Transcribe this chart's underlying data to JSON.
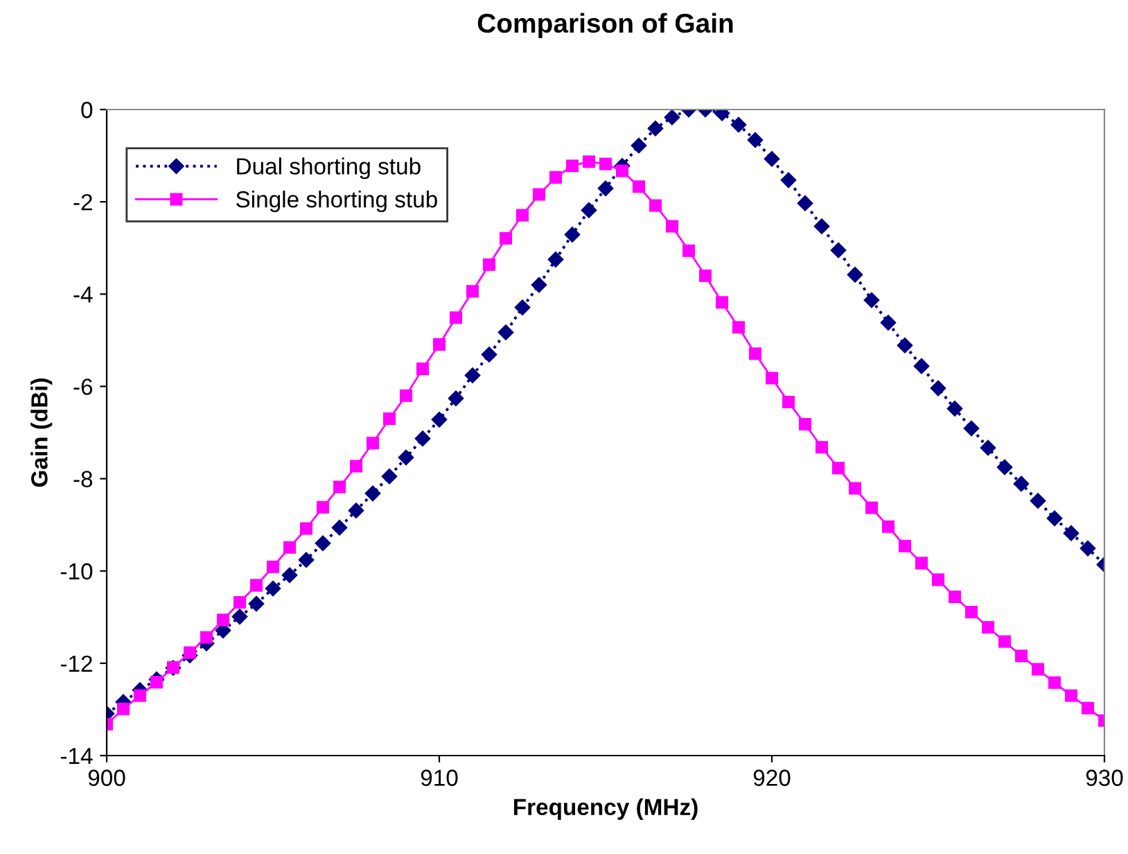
{
  "chart_data": {
    "type": "line",
    "title": "Comparison of Gain",
    "xlabel": "Frequency (MHz)",
    "ylabel": "Gain (dBi)",
    "x": [
      900,
      900.5,
      901,
      901.5,
      902,
      902.5,
      903,
      903.5,
      904,
      904.5,
      905,
      905.5,
      906,
      906.5,
      907,
      907.5,
      908,
      908.5,
      909,
      909.5,
      910,
      910.5,
      911,
      911.5,
      912,
      912.5,
      913,
      913.5,
      914,
      914.5,
      915,
      915.5,
      916,
      916.5,
      917,
      917.5,
      918,
      918.5,
      919,
      919.5,
      920,
      920.5,
      921,
      921.5,
      922,
      922.5,
      923,
      923.5,
      924,
      924.5,
      925,
      925.5,
      926,
      926.5,
      927,
      927.5,
      928,
      928.5,
      929,
      929.5,
      930
    ],
    "series": [
      {
        "name": "Dual shorting stub",
        "color": "#000080",
        "marker": "diamond",
        "line_style": "dotted",
        "values": [
          -13.09,
          -12.84,
          -12.58,
          -12.35,
          -12.1,
          -11.83,
          -11.57,
          -11.29,
          -10.99,
          -10.71,
          -10.38,
          -10.09,
          -9.76,
          -9.4,
          -9.06,
          -8.69,
          -8.32,
          -7.95,
          -7.54,
          -7.13,
          -6.72,
          -6.26,
          -5.76,
          -5.31,
          -4.83,
          -4.29,
          -3.8,
          -3.25,
          -2.71,
          -2.18,
          -1.71,
          -1.22,
          -0.78,
          -0.41,
          -0.17,
          0.0,
          0.0,
          -0.08,
          -0.33,
          -0.66,
          -1.07,
          -1.53,
          -2.03,
          -2.53,
          -3.05,
          -3.58,
          -4.13,
          -4.62,
          -5.11,
          -5.56,
          -6.04,
          -6.48,
          -6.91,
          -7.33,
          -7.75,
          -8.11,
          -8.48,
          -8.86,
          -9.18,
          -9.51,
          -9.86
        ]
      },
      {
        "name": "Single shorting stub",
        "color": "#ff00ff",
        "marker": "square",
        "line_style": "solid",
        "values": [
          -13.32,
          -12.99,
          -12.7,
          -12.41,
          -12.09,
          -11.77,
          -11.44,
          -11.06,
          -10.68,
          -10.31,
          -9.91,
          -9.49,
          -9.08,
          -8.62,
          -8.18,
          -7.73,
          -7.23,
          -6.7,
          -6.2,
          -5.62,
          -5.09,
          -4.51,
          -3.94,
          -3.36,
          -2.79,
          -2.29,
          -1.84,
          -1.47,
          -1.22,
          -1.13,
          -1.18,
          -1.33,
          -1.67,
          -2.08,
          -2.53,
          -3.06,
          -3.6,
          -4.18,
          -4.72,
          -5.29,
          -5.82,
          -6.34,
          -6.82,
          -7.32,
          -7.77,
          -8.21,
          -8.63,
          -9.04,
          -9.46,
          -9.83,
          -10.19,
          -10.56,
          -10.89,
          -11.22,
          -11.53,
          -11.84,
          -12.13,
          -12.42,
          -12.7,
          -12.97,
          -13.24
        ]
      }
    ],
    "xlim": [
      900,
      930
    ],
    "xticks": [
      900,
      910,
      920,
      930
    ],
    "ylim": [
      -14,
      0
    ],
    "yticks": [
      -14,
      -12,
      -10,
      -8,
      -6,
      -4,
      -2,
      0
    ],
    "grid": false,
    "legend": "top left"
  }
}
